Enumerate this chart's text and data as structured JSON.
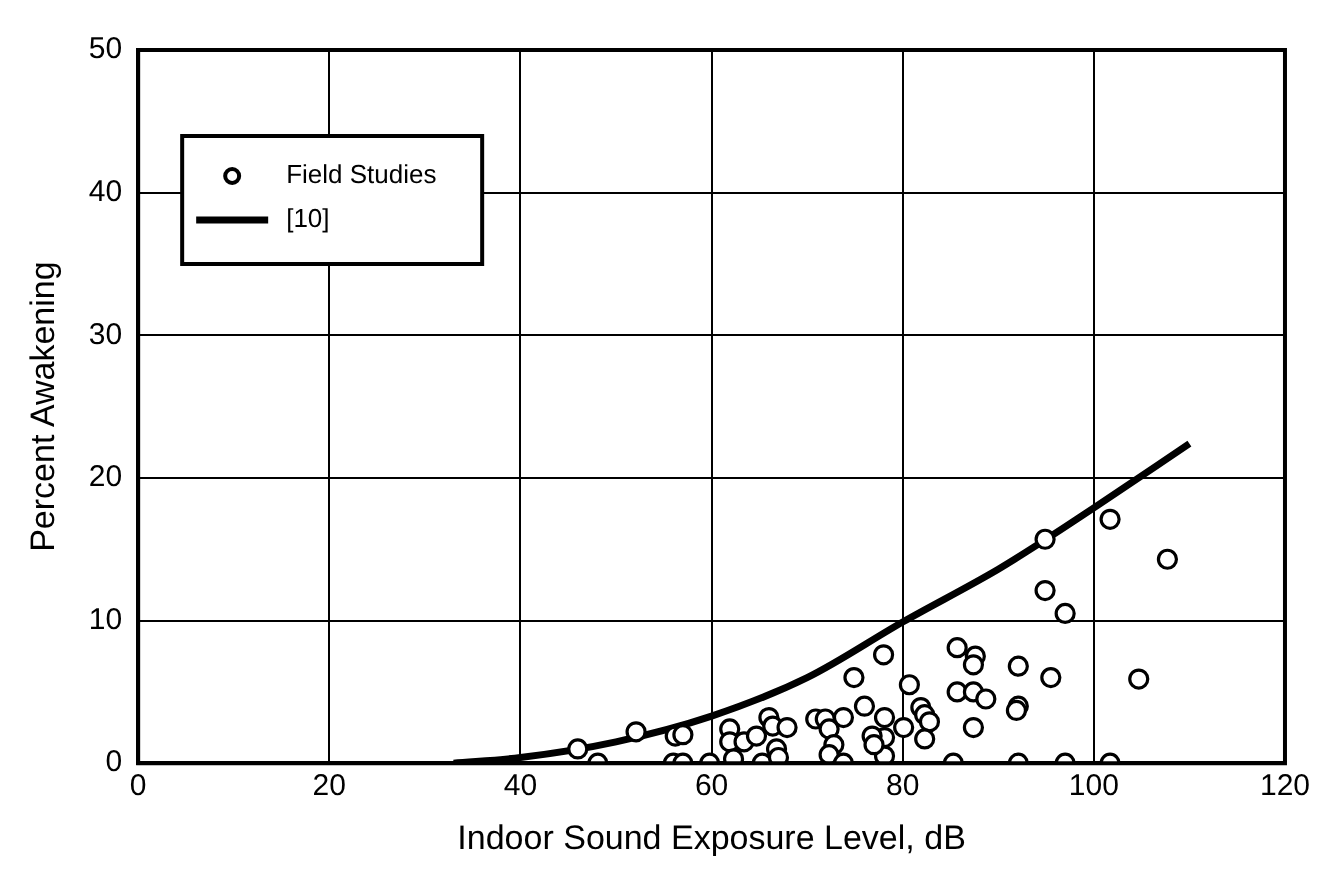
{
  "chart_data": {
    "type": "scatter",
    "xlabel": "Indoor Sound Exposure Level, dB",
    "ylabel": "Percent Awakening",
    "xlim": [
      0,
      120
    ],
    "xticks": [
      0,
      20,
      40,
      60,
      80,
      100,
      120
    ],
    "ylim": [
      0,
      50
    ],
    "yticks": [
      0,
      10,
      20,
      30,
      40,
      50
    ],
    "grid": true,
    "legend": "top left",
    "series": [
      {
        "name": "Field Studies",
        "type": "scatter",
        "marker": "circle",
        "color": "#000000",
        "x": [
          101.7,
          107.7,
          94.9,
          94.9,
          97.0,
          78.0,
          85.7,
          87.6,
          87.4,
          92.1,
          95.5,
          104.7,
          80.7,
          85.7,
          87.4,
          88.7,
          92.1,
          91.9,
          81.9,
          82.3,
          82.8,
          87.4,
          82.3,
          78.1,
          80.1,
          78.1,
          78.1,
          85.3,
          92.1,
          97.0,
          101.7,
          46.0,
          48.1,
          52.1,
          56.2,
          57.0,
          56.0,
          57.0,
          59.8,
          61.9,
          61.9,
          62.3,
          63.4,
          64.7,
          66.0,
          66.4,
          67.9,
          65.3,
          66.8,
          67.0,
          70.9,
          71.9,
          72.3,
          72.8,
          72.3,
          73.8,
          73.8,
          74.9,
          76.0,
          76.8,
          77.0
        ],
        "values": [
          17.1,
          14.3,
          15.7,
          12.1,
          10.5,
          7.6,
          8.1,
          7.5,
          6.9,
          6.8,
          6.0,
          5.9,
          5.5,
          5.0,
          5.0,
          4.5,
          4.0,
          3.7,
          3.9,
          3.4,
          2.9,
          2.5,
          1.7,
          3.2,
          2.5,
          1.8,
          0.5,
          0,
          0,
          0,
          0,
          1.0,
          0,
          2.2,
          1.9,
          2.0,
          0,
          0,
          0,
          2.4,
          1.5,
          0.3,
          1.5,
          1.9,
          3.2,
          2.6,
          2.5,
          0,
          1.0,
          0.4,
          3.1,
          3.1,
          2.4,
          1.3,
          0.6,
          3.2,
          0,
          6.0,
          4.0,
          1.9,
          1.3
        ]
      },
      {
        "name": "[10]",
        "type": "line",
        "marker": "none",
        "line_style": "solid",
        "color": "#000000",
        "x": [
          33,
          40,
          50,
          60,
          70,
          80,
          90,
          95,
          100,
          110
        ],
        "values": [
          0,
          0.4,
          1.5,
          3.3,
          6.0,
          9.9,
          13.6,
          15.7,
          17.9,
          22.4
        ]
      }
    ]
  }
}
